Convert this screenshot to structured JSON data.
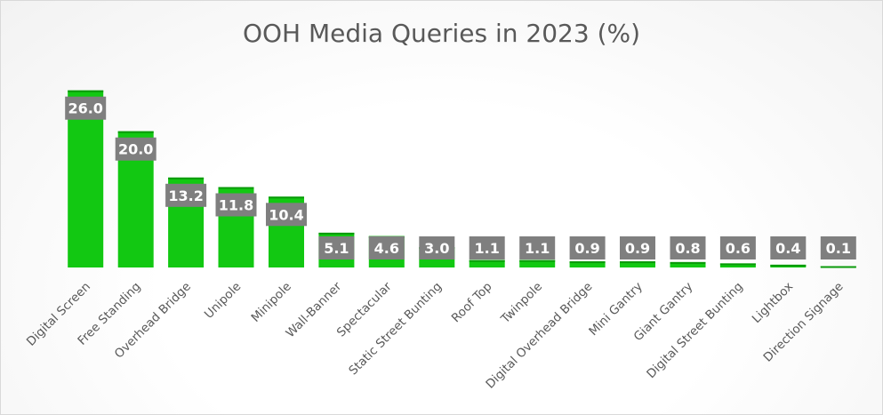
{
  "chart_data": {
    "type": "bar",
    "title": "OOH Media Queries in 2023 (%)",
    "xlabel": "",
    "ylabel": "",
    "ylim": [
      0,
      30
    ],
    "grid": false,
    "legend": "none",
    "categories": [
      "Digital Screen",
      "Free Standing",
      "Overhead Bridge",
      "Unipole",
      "Minipole",
      "Wall-Banner",
      "Spectacular",
      "Static Street Bunting",
      "Roof Top",
      "Twinpole",
      "Digital Overhead Bridge",
      "Mini Gantry",
      "Giant Gantry",
      "Digital Street Bunting",
      "Lightbox",
      "Direction Signage"
    ],
    "values": [
      26.0,
      20.0,
      13.2,
      11.8,
      10.4,
      5.1,
      4.6,
      3.0,
      1.1,
      1.1,
      0.9,
      0.9,
      0.8,
      0.6,
      0.4,
      0.1
    ],
    "data_labels": [
      "26.0",
      "20.0",
      "13.2",
      "11.8",
      "10.4",
      "5.1",
      "4.6",
      "3.0",
      "1.1",
      "1.1",
      "0.9",
      "0.9",
      "0.8",
      "0.6",
      "0.4",
      "0.1"
    ]
  },
  "colors": {
    "bar": "#12c812",
    "bar_top": "#0a9a0a",
    "label_bg": "#7f7f7f",
    "label_text": "#ffffff",
    "axis_text": "#595959"
  }
}
